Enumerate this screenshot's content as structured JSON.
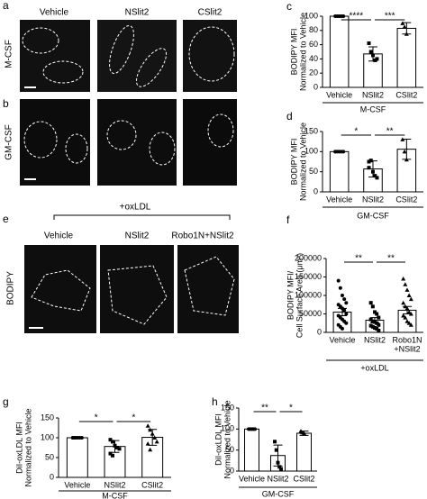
{
  "images": {
    "panels": [
      {
        "letter": "a",
        "row_label": "M-CSF",
        "columns": [
          "Vehicle",
          "NSlit2",
          "CSlit2"
        ]
      },
      {
        "letter": "b",
        "row_label": "GM-CSF"
      },
      {
        "letter": "e",
        "header": "+oxLDL",
        "row_label": "BODIPY",
        "columns": [
          "Vehicle",
          "NSlit2",
          "Robo1N+NSlit2"
        ]
      }
    ]
  },
  "chart_data": [
    {
      "type": "bar",
      "panel": "c",
      "ylabel": [
        "BODIPY MFI",
        "Normalized to Vehicle"
      ],
      "xlabel": "M-CSF",
      "categories": [
        "Vehicle",
        "NSlit2",
        "CSlit2"
      ],
      "values": [
        100,
        47,
        83
      ],
      "errors": [
        0,
        10,
        8
      ],
      "points": [
        [
          100,
          100,
          100,
          100,
          100
        ],
        [
          62,
          50,
          45,
          38,
          40
        ],
        [
          90,
          85,
          75
        ]
      ],
      "annotations": [
        "****",
        "***"
      ],
      "ylim": [
        0,
        100
      ],
      "yticks": [
        0,
        20,
        40,
        60,
        80,
        100
      ]
    },
    {
      "type": "bar",
      "panel": "d",
      "ylabel": [
        "BODIPY MFI",
        "Normalized to Vehicle"
      ],
      "xlabel": "GM-CSF",
      "categories": [
        "Vehicle",
        "NSlit2",
        "CSlit2"
      ],
      "values": [
        100,
        57,
        106
      ],
      "errors": [
        0,
        20,
        25
      ],
      "points": [
        [
          100,
          100,
          100,
          100,
          100,
          100
        ],
        [
          75,
          78,
          50,
          40,
          35,
          60
        ],
        [
          130,
          100,
          80
        ]
      ],
      "annotations": [
        "*",
        "**"
      ],
      "ylim": [
        0,
        150
      ],
      "yticks": [
        0,
        50,
        100,
        150
      ]
    },
    {
      "type": "bar",
      "panel": "f",
      "ylabel": [
        "BODIPY MFI/",
        "Cell Surface Area (μm²)"
      ],
      "xlabel": "+oxLDL",
      "categories": [
        "Vehicle",
        "NSlit2",
        [
          "Robo1N",
          "+NSlit2"
        ]
      ],
      "values": [
        55000,
        33000,
        60000
      ],
      "errors": [
        10000,
        7000,
        10000
      ],
      "points": [
        [
          140000,
          120000,
          100000,
          90000,
          80000,
          75000,
          70000,
          65000,
          60000,
          50000,
          45000,
          40000,
          35000,
          30000,
          25000,
          20000,
          15000,
          10000
        ],
        [
          80000,
          70000,
          55000,
          50000,
          40000,
          35000,
          30000,
          28000,
          25000,
          20000,
          18000,
          15000,
          12000,
          10000,
          5000
        ],
        [
          145000,
          130000,
          115000,
          100000,
          90000,
          80000,
          70000,
          65000,
          55000,
          50000,
          45000,
          40000,
          30000,
          25000,
          20000
        ]
      ],
      "annotations": [
        "**",
        "**"
      ],
      "ylim": [
        0,
        200000
      ],
      "yticks": [
        0,
        50000,
        100000,
        150000,
        200000
      ]
    },
    {
      "type": "bar",
      "panel": "g",
      "ylabel": [
        "DiI-oxLDL MFI",
        "Normalized to Vehicle"
      ],
      "xlabel": "M-CSF",
      "categories": [
        "Vehicle",
        "NSlit2",
        "CSlit2"
      ],
      "values": [
        100,
        78,
        101
      ],
      "errors": [
        0,
        15,
        20
      ],
      "points": [
        [
          100,
          100,
          100,
          100,
          100,
          100,
          100
        ],
        [
          95,
          90,
          80,
          75,
          72,
          60,
          55
        ],
        [
          130,
          120,
          110,
          100,
          90,
          85,
          70
        ]
      ],
      "annotations": [
        "*",
        "*"
      ],
      "ylim": [
        0,
        150
      ],
      "yticks": [
        0,
        50,
        100,
        150
      ]
    },
    {
      "type": "bar",
      "panel": "h",
      "ylabel": [
        "DiI-oxLDL MFI",
        "Normalized to Vehicle"
      ],
      "xlabel": "GM-CSF",
      "categories": [
        "Vehicle",
        "NSlit2",
        "CSlit2"
      ],
      "values": [
        100,
        37,
        90
      ],
      "errors": [
        0,
        25,
        5
      ],
      "points": [
        [
          100,
          100,
          100,
          100,
          100
        ],
        [
          70,
          50,
          20,
          10,
          5
        ],
        [
          95,
          92,
          90
        ]
      ],
      "annotations": [
        "**",
        "*"
      ],
      "ylim": [
        0,
        150
      ],
      "yticks": [
        0,
        50,
        100,
        150
      ]
    }
  ]
}
